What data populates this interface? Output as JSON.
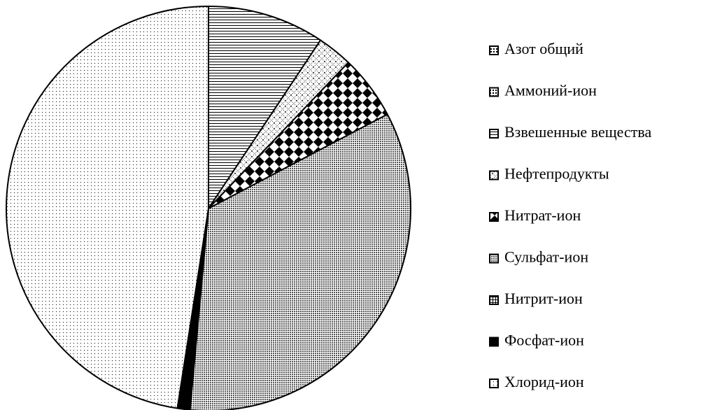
{
  "chart_data": {
    "type": "pie",
    "categories": [
      "Азот общий",
      "Аммоний-ион",
      "Взвешенные вещества",
      "Нефтепродукты",
      "Нитрат-ион",
      "Сульфат-ион",
      "Нитрит-ион",
      "Фосфат-ион",
      "Хлорид-ион"
    ],
    "values": [
      0,
      0,
      9.3,
      2.8,
      5.1,
      34,
      0,
      1,
      47.3
    ],
    "legend": "right"
  }
}
